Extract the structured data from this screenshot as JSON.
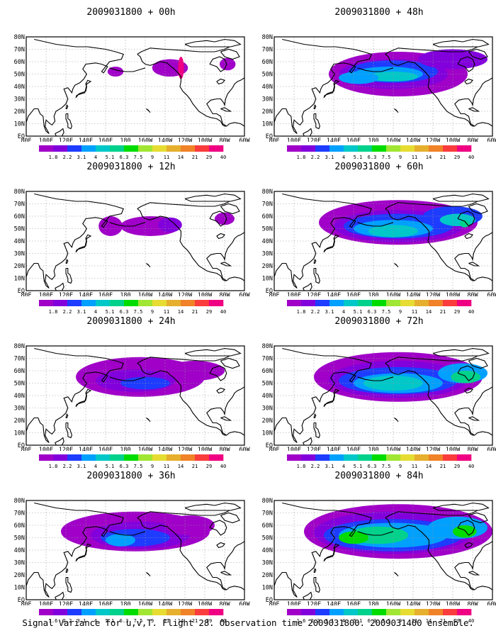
{
  "panels": [
    {
      "title": "2009031800 + 00h",
      "level": 0
    },
    {
      "title": "2009031800 + 48h",
      "level": 4
    },
    {
      "title": "2009031800 + 12h",
      "level": 1
    },
    {
      "title": "2009031800 + 60h",
      "level": 5
    },
    {
      "title": "2009031800 + 24h",
      "level": 2
    },
    {
      "title": "2009031800 + 72h",
      "level": 6
    },
    {
      "title": "2009031800 + 36h",
      "level": 3
    },
    {
      "title": "2009031800 + 84h",
      "level": 7
    }
  ],
  "lat_labels": [
    "80N",
    "70N",
    "60N",
    "50N",
    "40N",
    "30N",
    "20N",
    "10N",
    "EQ"
  ],
  "lon_labels": [
    "80E",
    "100E",
    "120E",
    "140E",
    "160E",
    "180",
    "160W",
    "140W",
    "120W",
    "100W",
    "80W",
    "60W"
  ],
  "colorbar": {
    "labels": [
      "1.8",
      "2.2",
      "3.1",
      "4",
      "5.1",
      "6.3",
      "7.5",
      "9",
      "11",
      "14",
      "21",
      "29",
      "40"
    ],
    "labels_last_row": [
      "1.6",
      "2.2",
      "3.1",
      "4",
      "5.1",
      "6.3",
      "7.5",
      "9",
      "11",
      "14",
      "21",
      "29",
      "40"
    ],
    "colors": [
      "#a000c8",
      "#8200dc",
      "#1e3cff",
      "#00a0ff",
      "#00c8c8",
      "#00d28c",
      "#00dc00",
      "#a0e632",
      "#e6dc32",
      "#e6af2d",
      "#f08228",
      "#fa3c3c",
      "#f00082"
    ]
  },
  "caption": "Signal Variance for u,v,T. Flight 28. Observation time 2009031800. 2009031400 ensemble."
}
